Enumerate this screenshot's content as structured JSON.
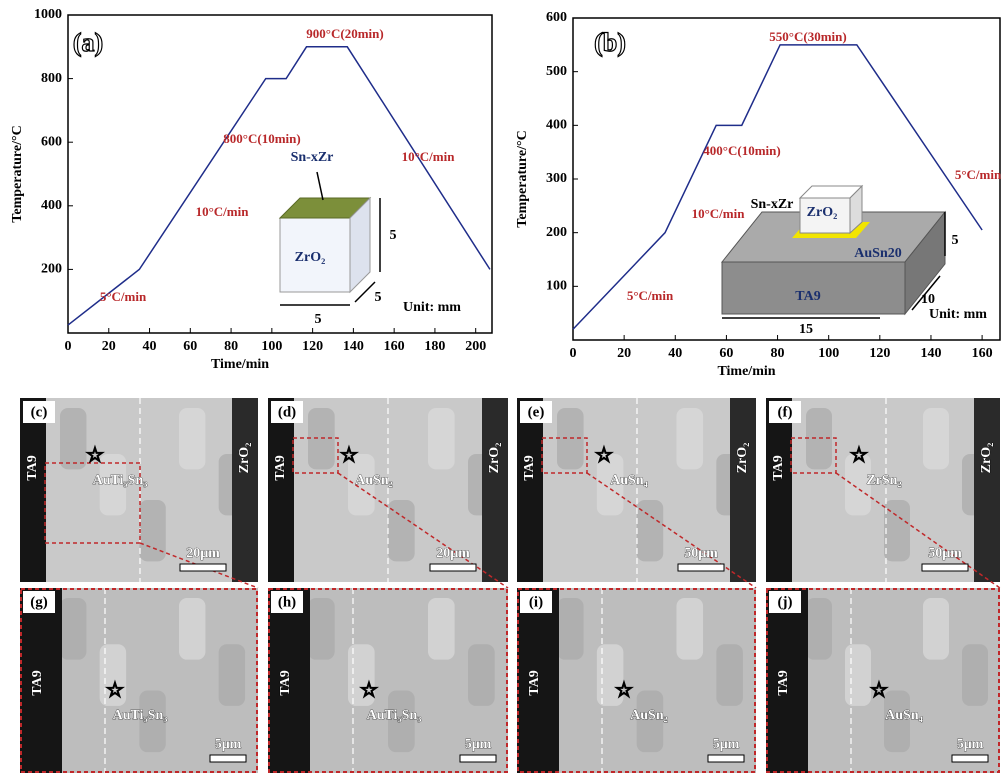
{
  "chart_data": [
    {
      "type": "line",
      "panel": "(a)",
      "xlabel": "Time/min",
      "ylabel": "Temperature/°C",
      "color": "#1f2d8a",
      "x": [
        0,
        35,
        97,
        107,
        117,
        137,
        207
      ],
      "values": [
        25,
        200,
        800,
        800,
        900,
        900,
        200
      ],
      "xlim": [
        0,
        208
      ],
      "ylim": [
        0,
        1000
      ],
      "xticks": [
        0,
        20,
        40,
        60,
        80,
        100,
        120,
        140,
        160,
        180,
        200
      ],
      "yticks": [
        200,
        400,
        600,
        800,
        1000
      ],
      "annotations": [
        "900°C(20min)",
        "800°C(10min)",
        "10°C/min",
        "5°C/min",
        "10°C/min",
        "Sn-xZr",
        "ZrO₂",
        "5",
        "5",
        "5",
        "Unit: mm"
      ]
    },
    {
      "type": "line",
      "panel": "(b)",
      "xlabel": "Time/min",
      "ylabel": "Temperature/°C",
      "color": "#1f2d8a",
      "x": [
        0,
        36,
        56,
        66,
        81,
        111,
        160
      ],
      "values": [
        20,
        200,
        400,
        400,
        550,
        550,
        205
      ],
      "xlim": [
        0,
        167
      ],
      "ylim": [
        0,
        600
      ],
      "xticks": [
        0,
        20,
        40,
        60,
        80,
        100,
        120,
        140,
        160
      ],
      "yticks": [
        100,
        200,
        300,
        400,
        500,
        600
      ],
      "annotations": [
        "550°C(30min)",
        "400°C(10min)",
        "10°C/min",
        "5°C/min",
        "5°C/min",
        "Sn-xZr",
        "ZrO₂",
        "AuSn20",
        "TA9",
        "15",
        "10",
        "5",
        "Unit: mm"
      ]
    }
  ],
  "panels": [
    {
      "label": "(c)",
      "left": "TA9",
      "phase": "AuTi₅Sn₃",
      "right": "ZrO₂",
      "scale": "20μm"
    },
    {
      "label": "(d)",
      "left": "TA9",
      "phase": "AuSn₂",
      "right": "ZrO₂",
      "scale": "20μm"
    },
    {
      "label": "(e)",
      "left": "TA9",
      "phase": "AuSn₄",
      "right": "ZrO₂",
      "scale": "50μm"
    },
    {
      "label": "(f)",
      "left": "TA9",
      "phase": "ZrSn₂",
      "right": "ZrO₂",
      "scale": "50μm"
    },
    {
      "label": "(g)",
      "left": "TA9",
      "phase": "AuTi₅Sn₃",
      "scale": "5μm"
    },
    {
      "label": "(h)",
      "left": "TA9",
      "phase": "AuTi₅Sn₃",
      "scale": "5μm"
    },
    {
      "label": "(i)",
      "left": "TA9",
      "phase": "AuSn₂",
      "scale": "5μm"
    },
    {
      "label": "(j)",
      "left": "TA9",
      "phase": "AuSn₄",
      "scale": "5μm"
    }
  ]
}
